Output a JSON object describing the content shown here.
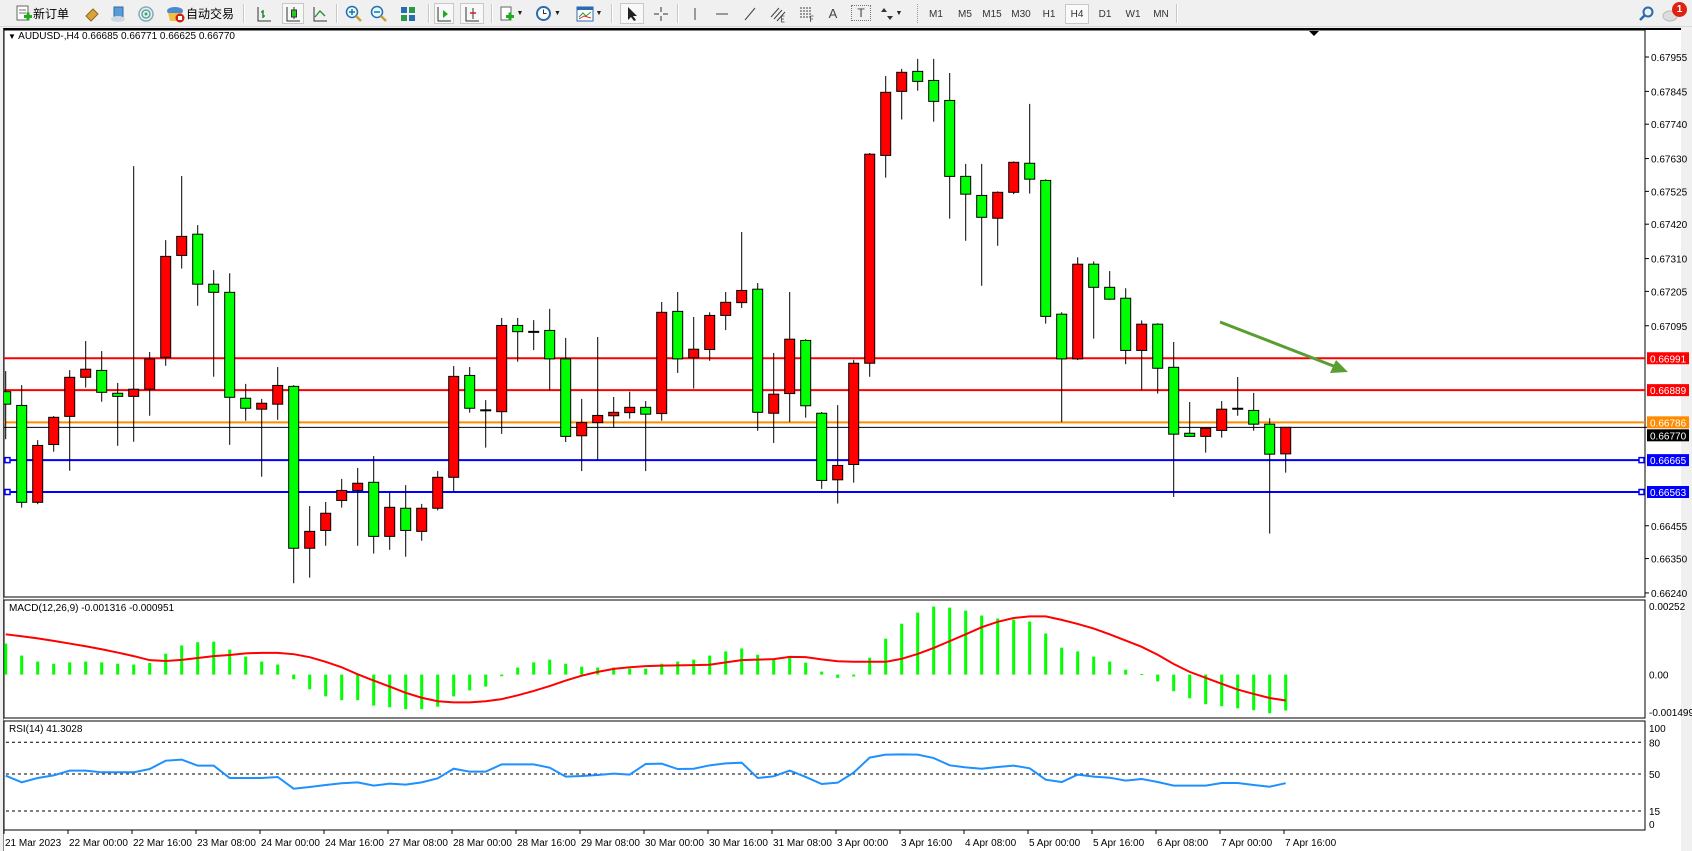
{
  "toolbar": {
    "new_order": {
      "label": "新订单",
      "icon": "new-order-icon"
    },
    "gold_icon": "gold-bar-icon",
    "history_icon": "history-center-icon",
    "signals_icon": "signals-icon",
    "auto_trading": {
      "label": "自动交易",
      "icon": "auto-trading-stopped-icon"
    },
    "chart_types": [
      "bar-chart-icon",
      "candlestick-icon",
      "line-chart-icon"
    ],
    "active_chart_type": "candlestick-icon",
    "zoom_in_icon": "zoom-in-icon",
    "zoom_out_icon": "zoom-out-icon",
    "tile_icon": "tile-windows-icon",
    "autoscroll_icon": "autoscroll-icon",
    "chart_shift_icon": "chart-shift-icon",
    "indicators_icon": "indicators-icon",
    "periods_icon": "periods-clock-icon",
    "templates_icon": "templates-icon",
    "drawing_tools": [
      "cursor-icon",
      "crosshair-icon",
      "vertical-line-icon",
      "horizontal-line-icon",
      "trendline-icon",
      "equidistant-channel-icon",
      "fibonacci-icon"
    ],
    "text_tool": "A",
    "label_tool": "T",
    "arrows_icon": "arrows-icon",
    "timeframes": [
      "M1",
      "M5",
      "M15",
      "M30",
      "H1",
      "H4",
      "D1",
      "W1",
      "MN"
    ],
    "active_timeframe": "H4",
    "search_icon": "search-icon",
    "notifications": {
      "icon": "chat-bubble-icon",
      "count": "1"
    }
  },
  "chart": {
    "symbol_label": "AUDUSD-,H4  0.66685 0.66771 0.66625 0.66770",
    "colors": {
      "bull": "#ff0000",
      "bear": "#00ff00",
      "bid": "#000000"
    },
    "bid": 0.6677,
    "bid_label": "0.66770",
    "price_labels": [
      "0.67955",
      "0.67845",
      "0.67740",
      "0.67630",
      "0.67525",
      "0.67420",
      "0.67310",
      "0.67205",
      "0.67095",
      "0.66455",
      "0.66350",
      "0.66240"
    ],
    "levels": [
      {
        "price": 0.66991,
        "label": "0.66991",
        "color": "#ff0000"
      },
      {
        "price": 0.66889,
        "label": "0.66889",
        "color": "#ff0000"
      },
      {
        "price": 0.66786,
        "label": "0.66786",
        "color": "#ff8c00"
      },
      {
        "price": 0.66665,
        "label": "0.66665",
        "color": "#0000ff",
        "selected": true
      },
      {
        "price": 0.66563,
        "label": "0.66563",
        "color": "#0000ff",
        "selected": true
      }
    ],
    "arrow_color": "#5a9e32",
    "time_labels": [
      "21 Mar 2023",
      "22 Mar 00:00",
      "22 Mar 16:00",
      "23 Mar 08:00",
      "24 Mar 00:00",
      "24 Mar 16:00",
      "27 Mar 08:00",
      "28 Mar 00:00",
      "28 Mar 16:00",
      "29 Mar 08:00",
      "30 Mar 00:00",
      "30 Mar 16:00",
      "31 Mar 08:00",
      "3 Apr 00:00",
      "3 Apr 16:00",
      "4 Apr 08:00",
      "5 Apr 00:00",
      "5 Apr 16:00",
      "6 Apr 08:00",
      "7 Apr 00:00",
      "7 Apr 16:00"
    ]
  },
  "macd": {
    "label": "MACD(12,26,9) -0.001316 -0.000951",
    "axis_labels": [
      "0.00252",
      "0.00",
      "-0.001499"
    ],
    "histogram_color": "#00ff00",
    "signal_color": "#ff0000"
  },
  "rsi": {
    "label": "RSI(14) 41.3028",
    "levels": [
      80,
      50,
      15
    ],
    "axis_labels": [
      "100",
      "80",
      "50",
      "15",
      "0"
    ],
    "line_color": "#1e90ff"
  },
  "chart_data": {
    "type": "candlestick",
    "symbol": "AUDUSD-",
    "timeframe": "H4",
    "ylim": [
      0.6624,
      0.67955
    ],
    "ohlc_columns": [
      "open",
      "high",
      "low",
      "close"
    ],
    "ohlc": [
      [
        0.66884,
        0.6695,
        0.66732,
        0.66844
      ],
      [
        0.6684,
        0.66905,
        0.66513,
        0.6653
      ],
      [
        0.6653,
        0.66729,
        0.66524,
        0.66712
      ],
      [
        0.66715,
        0.66806,
        0.66692,
        0.66802
      ],
      [
        0.66805,
        0.66953,
        0.66631,
        0.6693
      ],
      [
        0.6693,
        0.67046,
        0.66897,
        0.66956
      ],
      [
        0.66952,
        0.67014,
        0.66852,
        0.66882
      ],
      [
        0.66879,
        0.66912,
        0.66711,
        0.66869
      ],
      [
        0.66869,
        0.67606,
        0.66724,
        0.66892
      ],
      [
        0.66892,
        0.67011,
        0.66807,
        0.66989
      ],
      [
        0.66994,
        0.67369,
        0.66967,
        0.67317
      ],
      [
        0.6732,
        0.67574,
        0.67278,
        0.67381
      ],
      [
        0.67388,
        0.67417,
        0.67159,
        0.67228
      ],
      [
        0.67228,
        0.67273,
        0.66932,
        0.67202
      ],
      [
        0.67202,
        0.67263,
        0.66714,
        0.66866
      ],
      [
        0.66863,
        0.66909,
        0.66791,
        0.66831
      ],
      [
        0.66828,
        0.66861,
        0.66612,
        0.66847
      ],
      [
        0.66844,
        0.66963,
        0.66794,
        0.66904
      ],
      [
        0.66901,
        0.66905,
        0.66271,
        0.66383
      ],
      [
        0.66383,
        0.66518,
        0.66289,
        0.66437
      ],
      [
        0.6644,
        0.66531,
        0.66391,
        0.66495
      ],
      [
        0.66536,
        0.66605,
        0.66513,
        0.66568
      ],
      [
        0.66568,
        0.6664,
        0.66391,
        0.66591
      ],
      [
        0.66594,
        0.66678,
        0.66366,
        0.66421
      ],
      [
        0.66421,
        0.6656,
        0.66378,
        0.66514
      ],
      [
        0.66511,
        0.66585,
        0.66356,
        0.6644
      ],
      [
        0.66437,
        0.66525,
        0.66407,
        0.66511
      ],
      [
        0.66511,
        0.6663,
        0.66504,
        0.6661
      ],
      [
        0.6661,
        0.66966,
        0.66563,
        0.66933
      ],
      [
        0.66936,
        0.66963,
        0.66817,
        0.66831
      ],
      [
        0.66826,
        0.66857,
        0.66705,
        0.66825
      ],
      [
        0.6682,
        0.6712,
        0.66749,
        0.67096
      ],
      [
        0.67096,
        0.6712,
        0.6698,
        0.67076
      ],
      [
        0.67077,
        0.67113,
        0.67017,
        0.67076
      ],
      [
        0.6708,
        0.67149,
        0.66889,
        0.66989
      ],
      [
        0.66989,
        0.67056,
        0.66723,
        0.66741
      ],
      [
        0.66743,
        0.66861,
        0.6663,
        0.66785
      ],
      [
        0.66785,
        0.67059,
        0.66665,
        0.66808
      ],
      [
        0.66807,
        0.66867,
        0.66768,
        0.66818
      ],
      [
        0.66817,
        0.66884,
        0.66798,
        0.66834
      ],
      [
        0.66834,
        0.66854,
        0.6663,
        0.66812
      ],
      [
        0.66814,
        0.67171,
        0.66791,
        0.67138
      ],
      [
        0.67141,
        0.67203,
        0.66944,
        0.66989
      ],
      [
        0.66993,
        0.67123,
        0.66894,
        0.6702
      ],
      [
        0.67019,
        0.67138,
        0.66983,
        0.67128
      ],
      [
        0.67128,
        0.67203,
        0.67081,
        0.6717
      ],
      [
        0.67169,
        0.67395,
        0.67152,
        0.67208
      ],
      [
        0.67212,
        0.67232,
        0.66759,
        0.66818
      ],
      [
        0.66815,
        0.67008,
        0.6672,
        0.66876
      ],
      [
        0.66878,
        0.67203,
        0.66787,
        0.67052
      ],
      [
        0.67048,
        0.67052,
        0.66801,
        0.66839
      ],
      [
        0.66815,
        0.66819,
        0.66573,
        0.666
      ],
      [
        0.66602,
        0.66841,
        0.66526,
        0.66648
      ],
      [
        0.66651,
        0.66986,
        0.66593,
        0.66975
      ],
      [
        0.66975,
        0.67648,
        0.66932,
        0.67644
      ],
      [
        0.6764,
        0.67894,
        0.67569,
        0.67842
      ],
      [
        0.67845,
        0.67917,
        0.67755,
        0.67906
      ],
      [
        0.67909,
        0.67949,
        0.67847,
        0.67877
      ],
      [
        0.6788,
        0.67949,
        0.67748,
        0.67813
      ],
      [
        0.67816,
        0.67904,
        0.67438,
        0.67573
      ],
      [
        0.67573,
        0.67613,
        0.67367,
        0.67516
      ],
      [
        0.67512,
        0.67613,
        0.67223,
        0.67442
      ],
      [
        0.67439,
        0.67525,
        0.67351,
        0.67522
      ],
      [
        0.67522,
        0.67621,
        0.67516,
        0.67618
      ],
      [
        0.67615,
        0.67805,
        0.67518,
        0.67564
      ],
      [
        0.6756,
        0.67564,
        0.67102,
        0.67125
      ],
      [
        0.67132,
        0.67138,
        0.66787,
        0.66989
      ],
      [
        0.66989,
        0.67314,
        0.66985,
        0.67292
      ],
      [
        0.67292,
        0.67301,
        0.67054,
        0.67218
      ],
      [
        0.67218,
        0.6727,
        0.67178,
        0.6718
      ],
      [
        0.67183,
        0.67215,
        0.66972,
        0.67016
      ],
      [
        0.67016,
        0.67112,
        0.66889,
        0.671
      ],
      [
        0.671,
        0.67103,
        0.66878,
        0.66959
      ],
      [
        0.66962,
        0.67043,
        0.66547,
        0.66748
      ],
      [
        0.66751,
        0.66851,
        0.6674,
        0.66741
      ],
      [
        0.66741,
        0.6677,
        0.66689,
        0.66767
      ],
      [
        0.6676,
        0.66854,
        0.66737,
        0.66828
      ],
      [
        0.66831,
        0.66931,
        0.66807,
        0.6683
      ],
      [
        0.66824,
        0.6688,
        0.66759,
        0.6678
      ],
      [
        0.6678,
        0.66799,
        0.6643,
        0.66684
      ],
      [
        0.66685,
        0.66771,
        0.66625,
        0.6677
      ]
    ],
    "macd_ylim": [
      -0.001499,
      0.00252
    ],
    "macd_histogram": [
      0.00114,
      0.0007,
      0.00048,
      0.0004,
      0.00045,
      0.00048,
      0.00045,
      0.0004,
      0.00037,
      0.00043,
      0.00077,
      0.00107,
      0.00119,
      0.00121,
      0.00092,
      0.00066,
      0.00048,
      0.00037,
      -0.00017,
      -0.00054,
      -0.0008,
      -0.00094,
      -0.00094,
      -0.00114,
      -0.0012,
      -0.00127,
      -0.00127,
      -0.00118,
      -0.0008,
      -0.00058,
      -0.00044,
      -6e-05,
      0.00026,
      0.00045,
      0.00055,
      0.0004,
      0.00029,
      0.00026,
      0.00026,
      0.00022,
      0.00022,
      0.0004,
      0.00048,
      0.00055,
      0.0007,
      0.00085,
      0.00096,
      0.00073,
      0.00059,
      0.00062,
      0.00044,
      0.00011,
      -0.00012,
      -7e-05,
      0.00062,
      0.00132,
      0.00187,
      0.00228,
      0.0025,
      0.00246,
      0.00235,
      0.00217,
      0.00206,
      0.00202,
      0.00195,
      0.00151,
      0.00099,
      0.00085,
      0.00066,
      0.00048,
      0.00018,
      2e-05,
      -0.00025,
      -0.00061,
      -0.00087,
      -0.00109,
      -0.00116,
      -0.00124,
      -0.00131,
      -0.00142,
      -0.00132
    ],
    "macd_signal": [
      0.00148,
      0.00141,
      0.00133,
      0.00124,
      0.00114,
      0.00104,
      0.00093,
      0.00081,
      0.00068,
      0.00053,
      0.0005,
      0.00054,
      0.00061,
      0.00068,
      0.00072,
      0.00078,
      0.0008,
      0.0008,
      0.00075,
      0.00064,
      0.00047,
      0.00027,
      1e-05,
      -0.00022,
      -0.00044,
      -0.00067,
      -0.00085,
      -0.00098,
      -0.00102,
      -0.00102,
      -0.00098,
      -0.0009,
      -0.00076,
      -0.0006,
      -0.00042,
      -0.00022,
      -4e-05,
      0.0001,
      0.00021,
      0.00027,
      0.00031,
      0.00033,
      0.00034,
      0.00035,
      0.00036,
      0.00045,
      0.00053,
      0.00055,
      0.00057,
      0.00065,
      0.00064,
      0.00056,
      0.00049,
      0.00047,
      0.00047,
      0.00047,
      0.00058,
      0.00076,
      0.00098,
      0.00123,
      0.00148,
      0.00174,
      0.00194,
      0.00208,
      0.00214,
      0.00214,
      0.00201,
      0.00186,
      0.00169,
      0.00148,
      0.00125,
      0.00102,
      0.00073,
      0.00039,
      0.0001,
      -0.00012,
      -0.00034,
      -0.00055,
      -0.00071,
      -0.00086,
      -0.00095
    ],
    "rsi": [
      48.4,
      42.1,
      46.2,
      48.7,
      53.2,
      53.2,
      51.6,
      51.6,
      51.6,
      54.7,
      62.6,
      63.6,
      57.9,
      57.9,
      46.2,
      46.2,
      46.2,
      47.2,
      36.1,
      37.7,
      39.6,
      41.2,
      42.1,
      39.0,
      40.9,
      39.9,
      42.1,
      45.9,
      55.0,
      52.2,
      52.2,
      59.1,
      59.1,
      59.1,
      56.0,
      47.5,
      48.1,
      49.1,
      50.3,
      49.4,
      59.5,
      59.8,
      54.7,
      55.0,
      58.2,
      60.1,
      60.7,
      46.2,
      47.8,
      53.2,
      47.2,
      40.5,
      41.8,
      51.3,
      65.5,
      68.3,
      68.6,
      68.3,
      65.1,
      58.2,
      56.3,
      55.0,
      56.6,
      57.9,
      55.4,
      44.6,
      42.4,
      49.4,
      47.5,
      46.5,
      43.7,
      45.3,
      42.4,
      39.0,
      39.0,
      39.0,
      41.5,
      41.5,
      39.6,
      38.0,
      41.3
    ]
  }
}
